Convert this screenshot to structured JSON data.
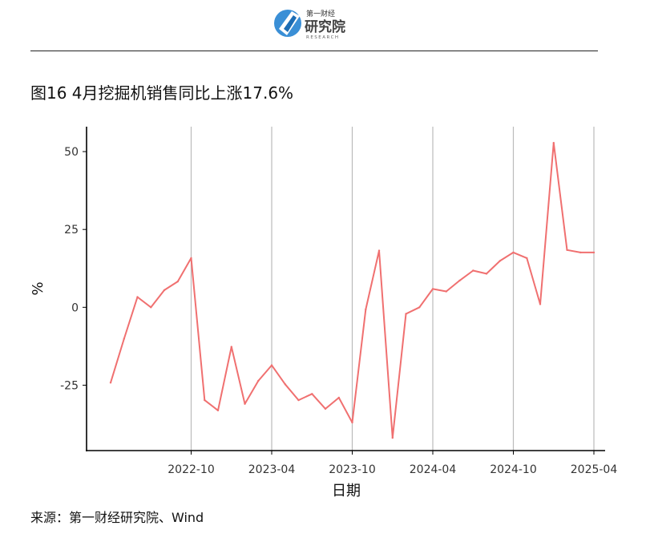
{
  "header": {
    "logo_line1": "第一财经",
    "logo_line2": "研究院",
    "logo_line3": "RESEARCH"
  },
  "title": "图16 4月挖掘机销售同比上涨17.6%",
  "source": "来源：第一财经研究院、Wind",
  "colors": {
    "line": "#F07070",
    "grid": "#BBBBBB",
    "axis": "#000000"
  },
  "chart_data": {
    "type": "line",
    "title": "图16 4月挖掘机销售同比上涨17.6%",
    "xlabel": "日期",
    "ylabel": "%",
    "ylim": [
      -46,
      58
    ],
    "yticks": [
      50,
      25,
      0,
      -25
    ],
    "ytick_labels": [
      "50",
      "25",
      "0",
      "-25"
    ],
    "xticks": [
      "2022-10",
      "2023-04",
      "2023-10",
      "2024-04",
      "2024-10",
      "2025-04"
    ],
    "grid": "vertical",
    "legend": "none",
    "series": [
      {
        "x": [
          "2022-04",
          "2022-05",
          "2022-06",
          "2022-07",
          "2022-08",
          "2022-09",
          "2022-10",
          "2022-11",
          "2022-12",
          "2023-01",
          "2023-02",
          "2023-03",
          "2023-04",
          "2023-05",
          "2023-06",
          "2023-07",
          "2023-08",
          "2023-09",
          "2023-10",
          "2023-11",
          "2023-12",
          "2024-01",
          "2024-02",
          "2024-03",
          "2024-04",
          "2024-05",
          "2024-06",
          "2024-07",
          "2024-08",
          "2024-09",
          "2024-10",
          "2024-11",
          "2024-12",
          "2025-01",
          "2025-02",
          "2025-03",
          "2025-04"
        ],
        "values": [
          -24.2,
          -10.1,
          3.3,
          0.0,
          5.5,
          8.3,
          15.8,
          -29.8,
          -33.1,
          -12.7,
          -31.0,
          -23.6,
          -18.6,
          -24.7,
          -29.8,
          -27.8,
          -32.6,
          -29.0,
          -37.0,
          -0.7,
          18.2,
          -41.9,
          -2.1,
          0.0,
          5.9,
          5.1,
          8.6,
          11.8,
          10.8,
          14.9,
          17.6,
          15.8,
          1.0,
          52.8,
          18.4,
          17.6,
          17.6
        ]
      }
    ]
  }
}
